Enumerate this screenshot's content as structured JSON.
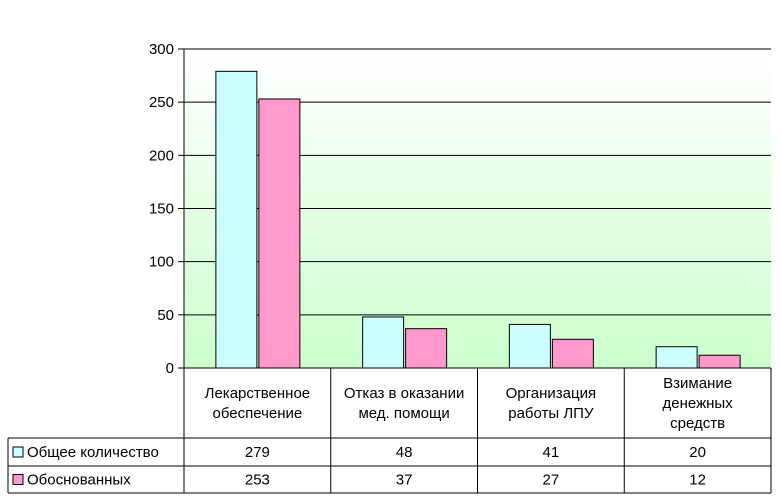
{
  "chart_data": {
    "type": "bar",
    "categories": [
      [
        "Лекарственное",
        "обеспечение"
      ],
      [
        "Отказ в оказании",
        "мед. помощи"
      ],
      [
        "Организация",
        "работы ЛПУ"
      ],
      [
        "Взимание",
        "денежных",
        "средств"
      ]
    ],
    "series": [
      {
        "name": "Общее количество",
        "values": [
          279,
          48,
          41,
          20
        ],
        "color": "#ccffff"
      },
      {
        "name": "Обоснованных",
        "values": [
          253,
          37,
          27,
          12
        ],
        "color": "#ff99cc"
      }
    ],
    "ylim": [
      0,
      300
    ],
    "yticks": [
      "300",
      "250",
      "200",
      "150",
      "100",
      "50",
      "0"
    ],
    "grid": true,
    "data_table": true,
    "plot_background": "gradient white to light green",
    "table_values": [
      [
        "279",
        "48",
        "41",
        "20"
      ],
      [
        "253",
        "37",
        "27",
        "12"
      ]
    ]
  }
}
